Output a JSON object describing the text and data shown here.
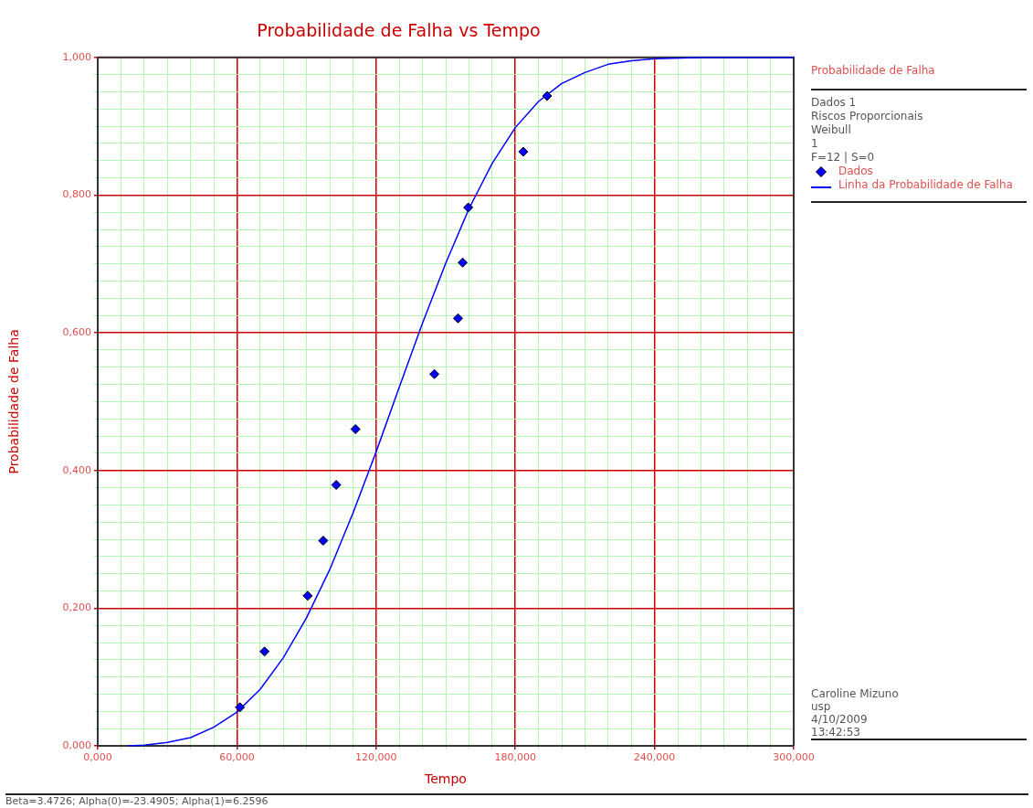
{
  "chart_data": {
    "type": "scatter",
    "title": "Probabilidade de Falha vs Tempo",
    "xlabel": "Tempo",
    "ylabel": "Probabilidade de Falha",
    "legend_title": "Probabilidade de Falha",
    "legend": "right",
    "grid": true,
    "annotations": [
      "Dados 1",
      "Riscos Proporcionais",
      "Weibull",
      "1",
      "F=12 | S=0",
      "Caroline Mizuno",
      "usp",
      "4/10/2009",
      "13:42:53",
      "Beta=3.4726; Alpha(0)=-23.4905; Alpha(1)=6.2596"
    ],
    "xlim": [
      0,
      300
    ],
    "ylim": [
      0,
      1
    ],
    "xticks": [
      {
        "value": 0,
        "label": "0,000"
      },
      {
        "value": 10,
        "label": null
      },
      {
        "value": 20,
        "label": null
      },
      {
        "value": 30,
        "label": null
      },
      {
        "value": 40,
        "label": null
      },
      {
        "value": 50,
        "label": null
      },
      {
        "value": 60,
        "label": "60,000"
      },
      {
        "value": 70,
        "label": null
      },
      {
        "value": 80,
        "label": null
      },
      {
        "value": 90,
        "label": null
      },
      {
        "value": 100,
        "label": null
      },
      {
        "value": 110,
        "label": null
      },
      {
        "value": 120,
        "label": "120,000"
      },
      {
        "value": 130,
        "label": null
      },
      {
        "value": 140,
        "label": null
      },
      {
        "value": 150,
        "label": null
      },
      {
        "value": 160,
        "label": null
      },
      {
        "value": 170,
        "label": null
      },
      {
        "value": 180,
        "label": "180,000"
      },
      {
        "value": 190,
        "label": null
      },
      {
        "value": 200,
        "label": null
      },
      {
        "value": 210,
        "label": null
      },
      {
        "value": 220,
        "label": null
      },
      {
        "value": 230,
        "label": null
      },
      {
        "value": 240,
        "label": "240,000"
      },
      {
        "value": 250,
        "label": null
      },
      {
        "value": 260,
        "label": null
      },
      {
        "value": 270,
        "label": null
      },
      {
        "value": 280,
        "label": null
      },
      {
        "value": 290,
        "label": null
      },
      {
        "value": 300,
        "label": "300,000"
      }
    ],
    "yticks": [
      {
        "value": 0,
        "label": "0,000"
      },
      {
        "value": 0.025,
        "label": null
      },
      {
        "value": 0.05,
        "label": null
      },
      {
        "value": 0.075,
        "label": null
      },
      {
        "value": 0.1,
        "label": null
      },
      {
        "value": 0.125,
        "label": null
      },
      {
        "value": 0.15,
        "label": null
      },
      {
        "value": 0.175,
        "label": null
      },
      {
        "value": 0.2,
        "label": "0,200"
      },
      {
        "value": 0.225,
        "label": null
      },
      {
        "value": 0.25,
        "label": null
      },
      {
        "value": 0.275,
        "label": null
      },
      {
        "value": 0.3,
        "label": null
      },
      {
        "value": 0.325,
        "label": null
      },
      {
        "value": 0.35,
        "label": null
      },
      {
        "value": 0.375,
        "label": null
      },
      {
        "value": 0.4,
        "label": "0,400"
      },
      {
        "value": 0.425,
        "label": null
      },
      {
        "value": 0.45,
        "label": null
      },
      {
        "value": 0.475,
        "label": null
      },
      {
        "value": 0.5,
        "label": null
      },
      {
        "value": 0.525,
        "label": null
      },
      {
        "value": 0.55,
        "label": null
      },
      {
        "value": 0.575,
        "label": null
      },
      {
        "value": 0.6,
        "label": "0,600"
      },
      {
        "value": 0.625,
        "label": null
      },
      {
        "value": 0.65,
        "label": null
      },
      {
        "value": 0.675,
        "label": null
      },
      {
        "value": 0.7,
        "label": null
      },
      {
        "value": 0.725,
        "label": null
      },
      {
        "value": 0.75,
        "label": null
      },
      {
        "value": 0.775,
        "label": null
      },
      {
        "value": 0.8,
        "label": "0,800"
      },
      {
        "value": 0.825,
        "label": null
      },
      {
        "value": 0.85,
        "label": null
      },
      {
        "value": 0.875,
        "label": null
      },
      {
        "value": 0.9,
        "label": null
      },
      {
        "value": 0.925,
        "label": null
      },
      {
        "value": 0.95,
        "label": null
      },
      {
        "value": 0.975,
        "label": null
      },
      {
        "value": 1,
        "label": "1,000"
      }
    ],
    "series": [
      {
        "name": "Dados",
        "type": "scatter",
        "marker": "diamond",
        "color": "#0000ff",
        "x": [
          61.3,
          71.9,
          90.5,
          97.2,
          102.8,
          111.1,
          145.1,
          155.3,
          157.3,
          159.7,
          183.4,
          193.7
        ],
        "values": [
          0.056,
          0.137,
          0.218,
          0.298,
          0.379,
          0.46,
          0.54,
          0.621,
          0.702,
          0.782,
          0.863,
          0.944
        ]
      },
      {
        "name": "Linha da Probabilidade de Falha",
        "type": "line",
        "marker": "none",
        "color": "#0000ff",
        "x": [
          13,
          20,
          30,
          40,
          50,
          60,
          70,
          80,
          90,
          100,
          110,
          120,
          130,
          140,
          150,
          160,
          170,
          180,
          190,
          200,
          210,
          220,
          230,
          240,
          260,
          280,
          300
        ],
        "values": [
          0,
          0.001,
          0.005,
          0.012,
          0.027,
          0.049,
          0.082,
          0.128,
          0.186,
          0.256,
          0.338,
          0.427,
          0.521,
          0.614,
          0.701,
          0.78,
          0.846,
          0.898,
          0.936,
          0.962,
          0.978,
          0.99,
          0.995,
          0.998,
          1,
          1,
          1
        ]
      }
    ]
  }
}
